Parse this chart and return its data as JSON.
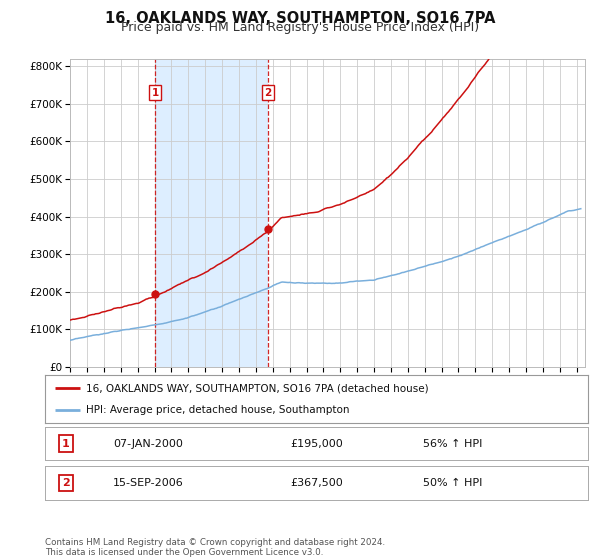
{
  "title": "16, OAKLANDS WAY, SOUTHAMPTON, SO16 7PA",
  "subtitle": "Price paid vs. HM Land Registry's House Price Index (HPI)",
  "title_fontsize": 10.5,
  "subtitle_fontsize": 9,
  "ylabel_ticks": [
    "£0",
    "£100K",
    "£200K",
    "£300K",
    "£400K",
    "£500K",
    "£600K",
    "£700K",
    "£800K"
  ],
  "ytick_values": [
    0,
    100000,
    200000,
    300000,
    400000,
    500000,
    600000,
    700000,
    800000
  ],
  "ylim": [
    0,
    820000
  ],
  "xlim_start": 1995.0,
  "xlim_end": 2025.5,
  "x_ticks": [
    1995,
    1996,
    1997,
    1998,
    1999,
    2000,
    2001,
    2002,
    2003,
    2004,
    2005,
    2006,
    2007,
    2008,
    2009,
    2010,
    2011,
    2012,
    2013,
    2014,
    2015,
    2016,
    2017,
    2018,
    2019,
    2020,
    2021,
    2022,
    2023,
    2024,
    2025
  ],
  "hpi_color": "#7aafdc",
  "price_color": "#cc1111",
  "vline_color": "#cc1111",
  "vline_style": "--",
  "shade_color": "#ddeeff",
  "sale1_x": 2000.04,
  "sale1_y": 195000,
  "sale2_x": 2006.71,
  "sale2_y": 367500,
  "sale1_label": "1",
  "sale2_label": "2",
  "legend_line1": "16, OAKLANDS WAY, SOUTHAMPTON, SO16 7PA (detached house)",
  "legend_line2": "HPI: Average price, detached house, Southampton",
  "table_rows": [
    [
      "1",
      "07-JAN-2000",
      "£195,000",
      "56% ↑ HPI"
    ],
    [
      "2",
      "15-SEP-2006",
      "£367,500",
      "50% ↑ HPI"
    ]
  ],
  "footnote": "Contains HM Land Registry data © Crown copyright and database right 2024.\nThis data is licensed under the Open Government Licence v3.0.",
  "background_color": "#ffffff",
  "plot_bg_color": "#ffffff",
  "grid_color": "#cccccc"
}
